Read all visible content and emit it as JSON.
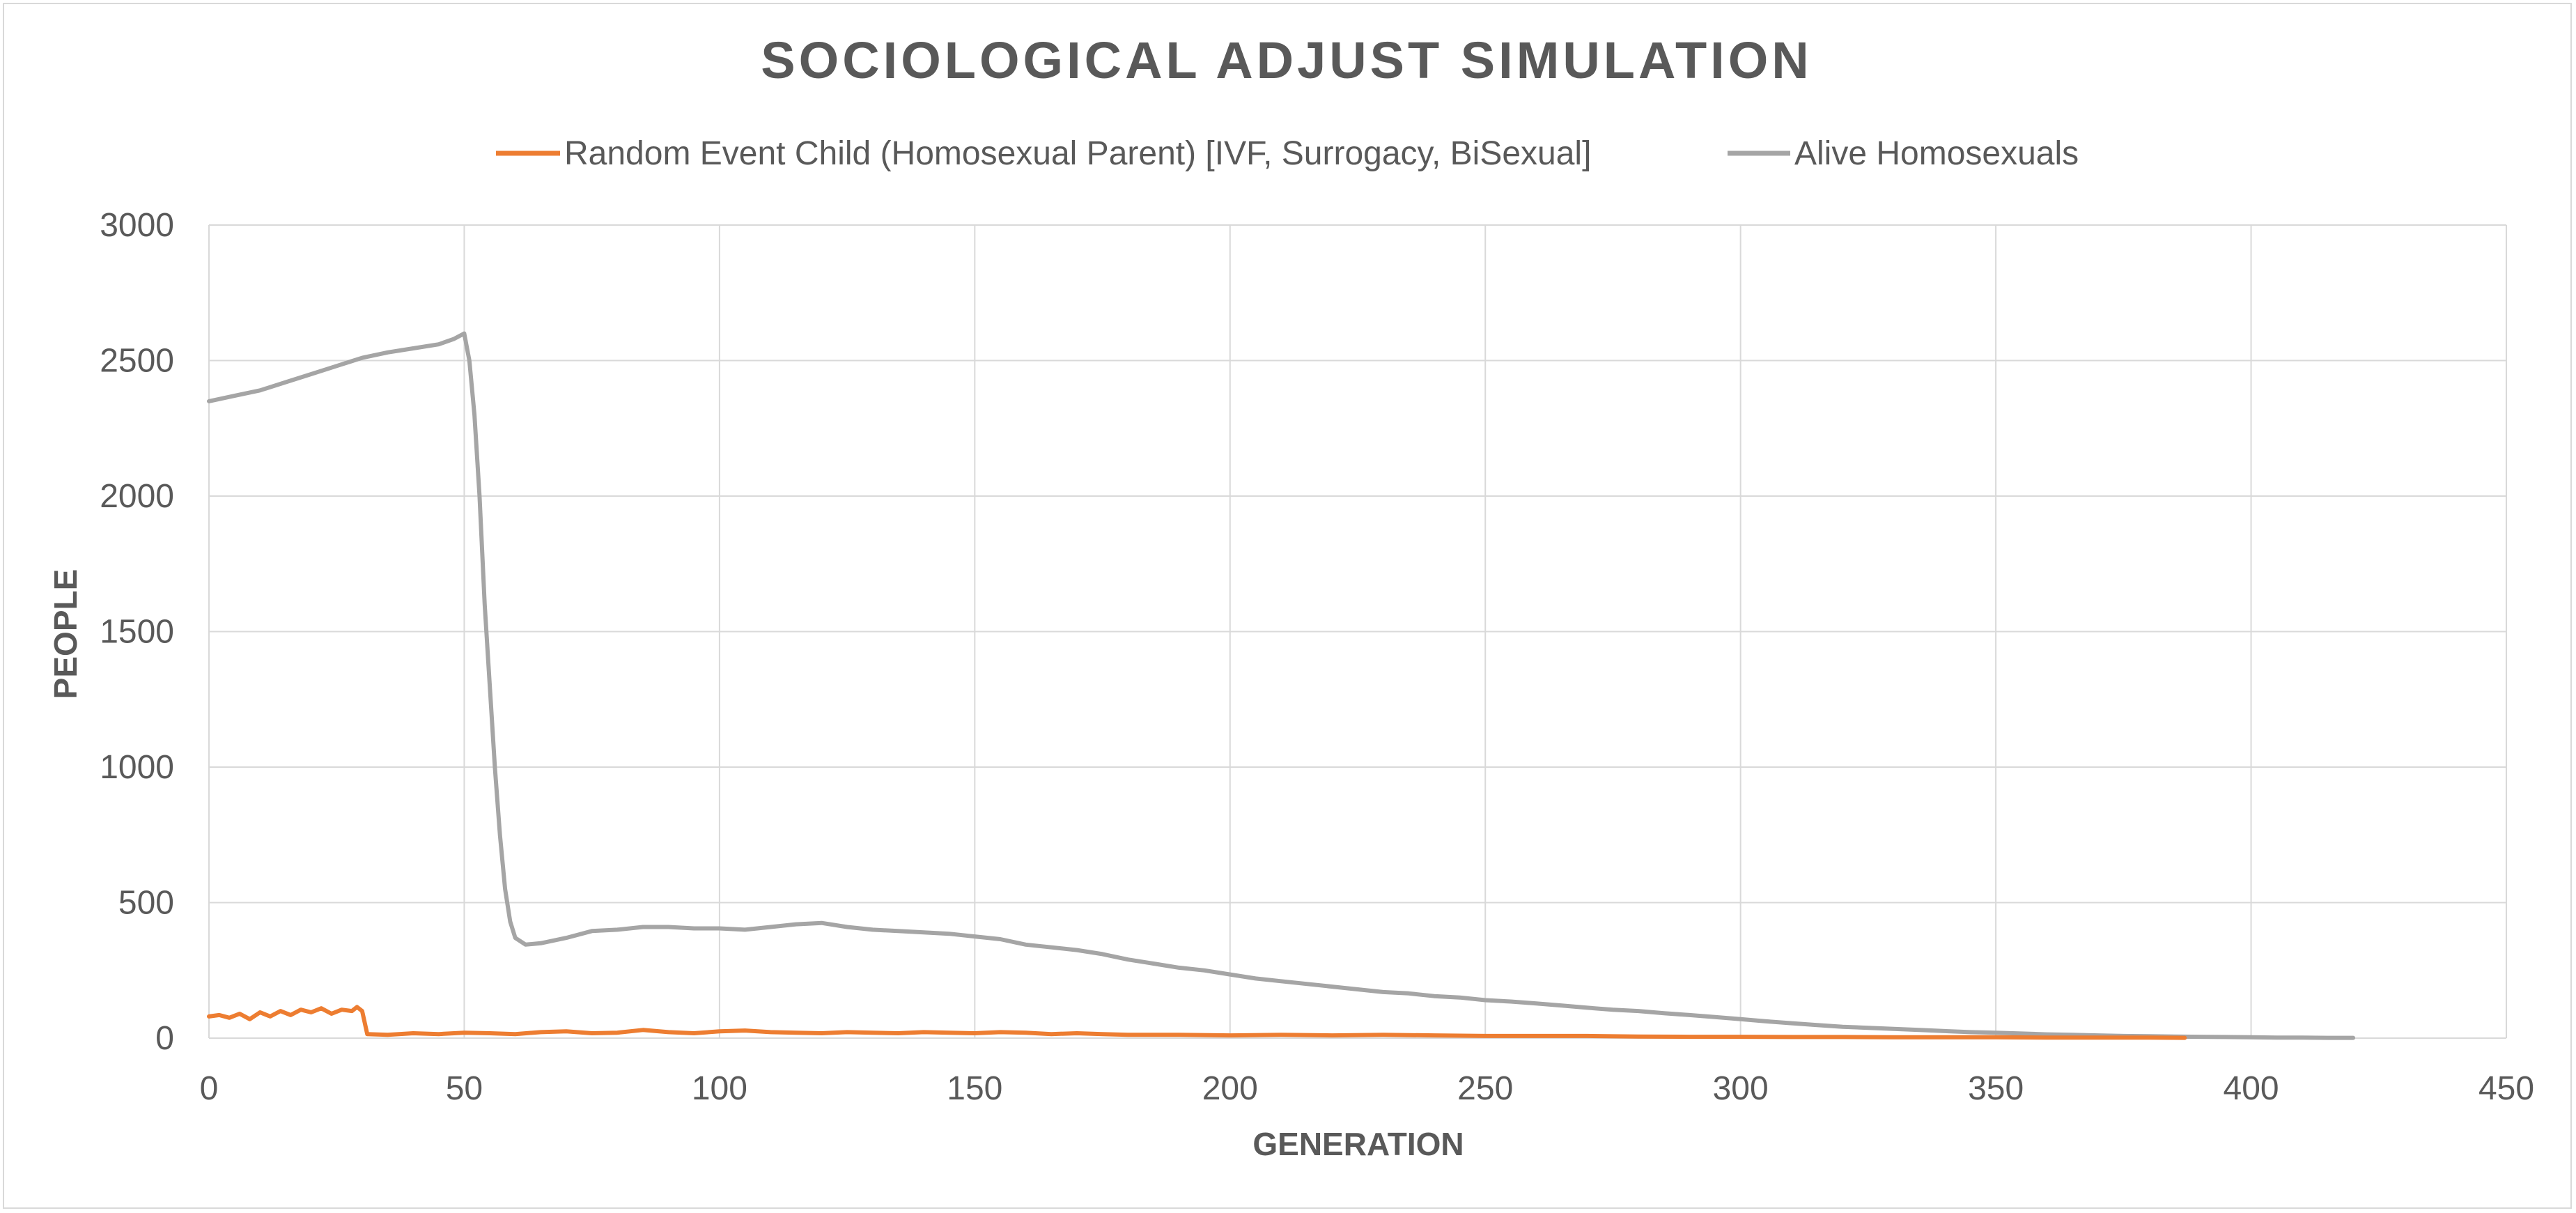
{
  "chart_data": {
    "type": "line",
    "title": "SOCIOLOGICAL ADJUST SIMULATION",
    "xlabel": "GENERATION",
    "ylabel": "PEOPLE",
    "xlim": [
      0,
      450
    ],
    "ylim": [
      0,
      3000
    ],
    "xticks": [
      "0",
      "50",
      "100",
      "150",
      "200",
      "250",
      "300",
      "350",
      "400",
      "450"
    ],
    "yticks": [
      "0",
      "500",
      "1000",
      "1500",
      "2000",
      "2500",
      "3000"
    ],
    "grid": true,
    "legend_position": "top",
    "series": [
      {
        "name": "Random Event Child (Homosexual Parent) [IVF, Surrogacy, BiSexual]",
        "color": "#ed7d31",
        "points": [
          [
            0,
            80
          ],
          [
            2,
            85
          ],
          [
            4,
            75
          ],
          [
            6,
            90
          ],
          [
            8,
            70
          ],
          [
            10,
            95
          ],
          [
            12,
            80
          ],
          [
            14,
            100
          ],
          [
            16,
            85
          ],
          [
            18,
            105
          ],
          [
            20,
            95
          ],
          [
            22,
            110
          ],
          [
            24,
            90
          ],
          [
            26,
            105
          ],
          [
            28,
            100
          ],
          [
            29,
            115
          ],
          [
            30,
            100
          ],
          [
            31,
            15
          ],
          [
            35,
            12
          ],
          [
            40,
            18
          ],
          [
            45,
            15
          ],
          [
            50,
            20
          ],
          [
            55,
            18
          ],
          [
            60,
            15
          ],
          [
            65,
            22
          ],
          [
            70,
            25
          ],
          [
            75,
            18
          ],
          [
            80,
            20
          ],
          [
            85,
            30
          ],
          [
            90,
            22
          ],
          [
            95,
            18
          ],
          [
            100,
            25
          ],
          [
            105,
            28
          ],
          [
            110,
            22
          ],
          [
            115,
            20
          ],
          [
            120,
            18
          ],
          [
            125,
            22
          ],
          [
            130,
            20
          ],
          [
            135,
            18
          ],
          [
            140,
            22
          ],
          [
            145,
            20
          ],
          [
            150,
            18
          ],
          [
            155,
            22
          ],
          [
            160,
            20
          ],
          [
            165,
            15
          ],
          [
            170,
            18
          ],
          [
            175,
            15
          ],
          [
            180,
            12
          ],
          [
            190,
            12
          ],
          [
            200,
            10
          ],
          [
            210,
            12
          ],
          [
            220,
            10
          ],
          [
            230,
            12
          ],
          [
            240,
            10
          ],
          [
            250,
            8
          ],
          [
            260,
            8
          ],
          [
            270,
            8
          ],
          [
            280,
            6
          ],
          [
            290,
            5
          ],
          [
            300,
            5
          ],
          [
            310,
            4
          ],
          [
            320,
            4
          ],
          [
            330,
            3
          ],
          [
            340,
            3
          ],
          [
            350,
            3
          ],
          [
            360,
            2
          ],
          [
            370,
            2
          ],
          [
            380,
            2
          ],
          [
            387,
            1
          ]
        ]
      },
      {
        "name": "Alive Homosexuals",
        "color": "#a5a5a5",
        "points": [
          [
            0,
            2350
          ],
          [
            5,
            2370
          ],
          [
            10,
            2390
          ],
          [
            15,
            2420
          ],
          [
            20,
            2450
          ],
          [
            25,
            2480
          ],
          [
            30,
            2510
          ],
          [
            35,
            2530
          ],
          [
            40,
            2545
          ],
          [
            45,
            2560
          ],
          [
            48,
            2580
          ],
          [
            50,
            2600
          ],
          [
            51,
            2500
          ],
          [
            52,
            2300
          ],
          [
            53,
            2000
          ],
          [
            54,
            1600
          ],
          [
            55,
            1300
          ],
          [
            56,
            1000
          ],
          [
            57,
            750
          ],
          [
            58,
            550
          ],
          [
            59,
            430
          ],
          [
            60,
            370
          ],
          [
            62,
            345
          ],
          [
            65,
            350
          ],
          [
            70,
            370
          ],
          [
            75,
            395
          ],
          [
            80,
            400
          ],
          [
            85,
            410
          ],
          [
            90,
            410
          ],
          [
            95,
            405
          ],
          [
            100,
            405
          ],
          [
            105,
            400
          ],
          [
            110,
            410
          ],
          [
            115,
            420
          ],
          [
            120,
            425
          ],
          [
            125,
            410
          ],
          [
            130,
            400
          ],
          [
            135,
            395
          ],
          [
            140,
            390
          ],
          [
            145,
            385
          ],
          [
            150,
            375
          ],
          [
            155,
            365
          ],
          [
            160,
            345
          ],
          [
            165,
            335
          ],
          [
            170,
            325
          ],
          [
            175,
            310
          ],
          [
            180,
            290
          ],
          [
            185,
            275
          ],
          [
            190,
            260
          ],
          [
            195,
            250
          ],
          [
            200,
            235
          ],
          [
            205,
            220
          ],
          [
            210,
            210
          ],
          [
            215,
            200
          ],
          [
            220,
            190
          ],
          [
            225,
            180
          ],
          [
            230,
            170
          ],
          [
            235,
            165
          ],
          [
            240,
            155
          ],
          [
            245,
            150
          ],
          [
            250,
            140
          ],
          [
            255,
            135
          ],
          [
            260,
            128
          ],
          [
            265,
            120
          ],
          [
            270,
            112
          ],
          [
            275,
            105
          ],
          [
            280,
            100
          ],
          [
            285,
            92
          ],
          [
            290,
            85
          ],
          [
            295,
            78
          ],
          [
            300,
            70
          ],
          [
            305,
            62
          ],
          [
            310,
            55
          ],
          [
            315,
            48
          ],
          [
            320,
            42
          ],
          [
            325,
            38
          ],
          [
            330,
            34
          ],
          [
            335,
            30
          ],
          [
            340,
            26
          ],
          [
            345,
            22
          ],
          [
            350,
            20
          ],
          [
            355,
            17
          ],
          [
            360,
            14
          ],
          [
            365,
            12
          ],
          [
            370,
            10
          ],
          [
            375,
            8
          ],
          [
            380,
            7
          ],
          [
            385,
            6
          ],
          [
            390,
            5
          ],
          [
            395,
            4
          ],
          [
            400,
            3
          ],
          [
            405,
            2
          ],
          [
            410,
            2
          ],
          [
            415,
            1
          ],
          [
            420,
            1
          ]
        ]
      }
    ]
  }
}
